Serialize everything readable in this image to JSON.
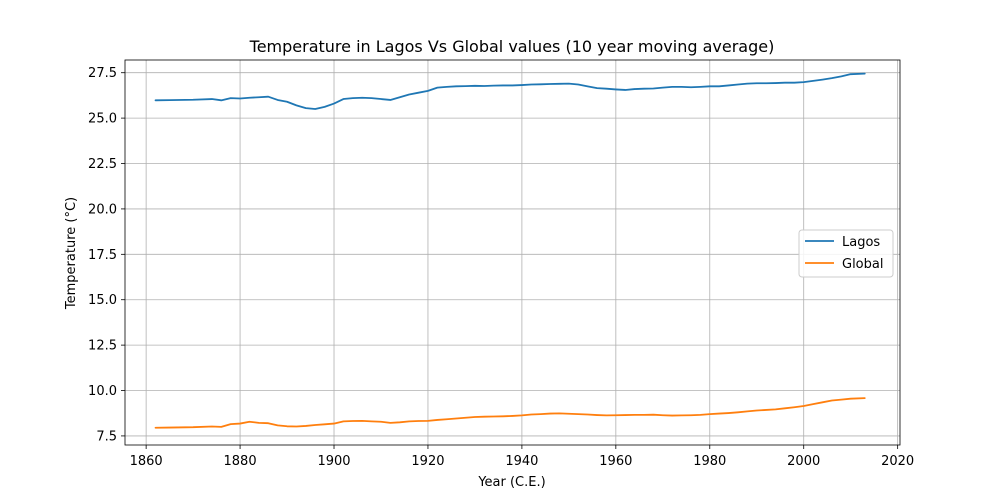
{
  "chart_data": {
    "type": "line",
    "title": "Temperature in Lagos Vs  Global values (10 year moving average)",
    "xlabel": "Year (C.E.)",
    "ylabel": "Temperature (°C)",
    "xlim": [
      1855.5,
      2020.5
    ],
    "ylim": [
      7.0,
      28.2
    ],
    "xticks": [
      "1860",
      "1880",
      "1900",
      "1920",
      "1940",
      "1960",
      "1980",
      "2000",
      "2020"
    ],
    "yticks": [
      "7.5",
      "10.0",
      "12.5",
      "15.0",
      "17.5",
      "20.0",
      "22.5",
      "25.0",
      "27.5"
    ],
    "grid": true,
    "legend_position": "center-right",
    "series": [
      {
        "name": "Lagos",
        "color": "#1f77b4",
        "x": [
          1862,
          1865,
          1870,
          1874,
          1876,
          1878,
          1880,
          1882,
          1884,
          1886,
          1888,
          1890,
          1892,
          1894,
          1896,
          1898,
          1900,
          1902,
          1904,
          1906,
          1908,
          1910,
          1912,
          1914,
          1916,
          1918,
          1920,
          1922,
          1924,
          1926,
          1928,
          1930,
          1932,
          1934,
          1936,
          1938,
          1940,
          1942,
          1944,
          1946,
          1948,
          1950,
          1952,
          1954,
          1956,
          1958,
          1960,
          1962,
          1964,
          1966,
          1968,
          1970,
          1972,
          1974,
          1976,
          1978,
          1980,
          1982,
          1984,
          1986,
          1988,
          1990,
          1992,
          1994,
          1996,
          1998,
          2000,
          2002,
          2004,
          2006,
          2008,
          2010,
          2013
        ],
        "y": [
          25.98,
          25.99,
          26.01,
          26.05,
          25.98,
          26.1,
          26.08,
          26.12,
          26.15,
          26.18,
          26.0,
          25.9,
          25.7,
          25.55,
          25.5,
          25.62,
          25.8,
          26.05,
          26.1,
          26.12,
          26.1,
          26.05,
          26.0,
          26.15,
          26.3,
          26.4,
          26.5,
          26.68,
          26.72,
          26.75,
          26.76,
          26.78,
          26.77,
          26.79,
          26.8,
          26.8,
          26.82,
          26.85,
          26.86,
          26.88,
          26.89,
          26.9,
          26.85,
          26.75,
          26.65,
          26.62,
          26.58,
          26.55,
          26.6,
          26.62,
          26.63,
          26.68,
          26.72,
          26.72,
          26.7,
          26.72,
          26.75,
          26.75,
          26.8,
          26.85,
          26.9,
          26.92,
          26.92,
          26.93,
          26.95,
          26.95,
          26.98,
          27.05,
          27.12,
          27.2,
          27.3,
          27.42,
          27.45
        ]
      },
      {
        "name": "Global",
        "color": "#ff7f0e",
        "x": [
          1862,
          1865,
          1870,
          1874,
          1876,
          1878,
          1880,
          1882,
          1884,
          1886,
          1888,
          1890,
          1892,
          1894,
          1896,
          1898,
          1900,
          1902,
          1904,
          1906,
          1908,
          1910,
          1912,
          1914,
          1916,
          1918,
          1920,
          1922,
          1924,
          1926,
          1928,
          1930,
          1932,
          1934,
          1936,
          1938,
          1940,
          1942,
          1944,
          1946,
          1948,
          1950,
          1952,
          1954,
          1956,
          1958,
          1960,
          1962,
          1964,
          1966,
          1968,
          1970,
          1972,
          1974,
          1976,
          1978,
          1980,
          1982,
          1984,
          1986,
          1988,
          1990,
          1992,
          1994,
          1996,
          1998,
          2000,
          2002,
          2004,
          2006,
          2008,
          2010,
          2013
        ],
        "y": [
          7.95,
          7.96,
          7.98,
          8.02,
          8.0,
          8.15,
          8.18,
          8.28,
          8.22,
          8.2,
          8.08,
          8.03,
          8.02,
          8.05,
          8.1,
          8.14,
          8.18,
          8.3,
          8.32,
          8.33,
          8.3,
          8.28,
          8.22,
          8.25,
          8.3,
          8.32,
          8.33,
          8.38,
          8.42,
          8.46,
          8.5,
          8.54,
          8.56,
          8.57,
          8.58,
          8.6,
          8.63,
          8.68,
          8.7,
          8.73,
          8.74,
          8.72,
          8.7,
          8.68,
          8.65,
          8.63,
          8.64,
          8.65,
          8.66,
          8.66,
          8.67,
          8.64,
          8.62,
          8.63,
          8.64,
          8.66,
          8.7,
          8.73,
          8.76,
          8.8,
          8.85,
          8.9,
          8.93,
          8.96,
          9.02,
          9.08,
          9.15,
          9.25,
          9.35,
          9.45,
          9.5,
          9.55,
          9.58
        ]
      }
    ]
  }
}
